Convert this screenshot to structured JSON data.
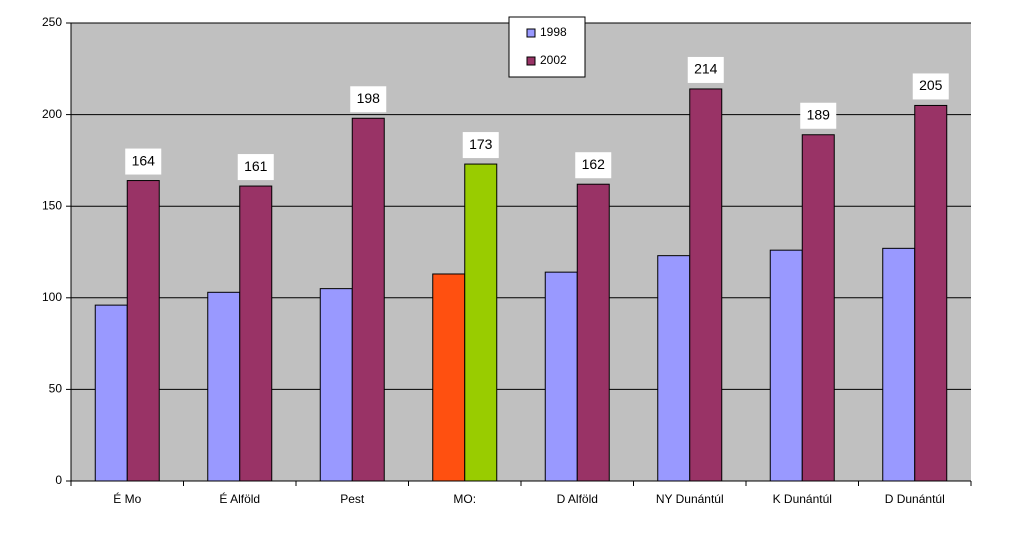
{
  "chart_data": {
    "type": "bar",
    "categories": [
      "É Mo",
      "É Alföld",
      "Pest",
      "MO:",
      "D Alföld",
      "NY Dunántúl",
      "K Dunántúl",
      "D Dunántúl"
    ],
    "series": [
      {
        "name": "1998",
        "color": "#9999ff",
        "values": [
          96,
          103,
          105,
          113,
          114,
          123,
          126,
          127
        ],
        "colors": [
          "#9999ff",
          "#9999ff",
          "#9999ff",
          "#ff5010",
          "#9999ff",
          "#9999ff",
          "#9999ff",
          "#9999ff"
        ]
      },
      {
        "name": "2002",
        "color": "#993366",
        "values": [
          164,
          161,
          198,
          173,
          162,
          214,
          189,
          205
        ],
        "colors": [
          "#993366",
          "#993366",
          "#993366",
          "#99cc00",
          "#993366",
          "#993366",
          "#993366",
          "#993366"
        ],
        "show_value_labels": true
      }
    ],
    "ylim": [
      0,
      250
    ],
    "yticks": [
      0,
      50,
      100,
      150,
      200,
      250
    ],
    "grid": true,
    "legend": "top-center"
  }
}
